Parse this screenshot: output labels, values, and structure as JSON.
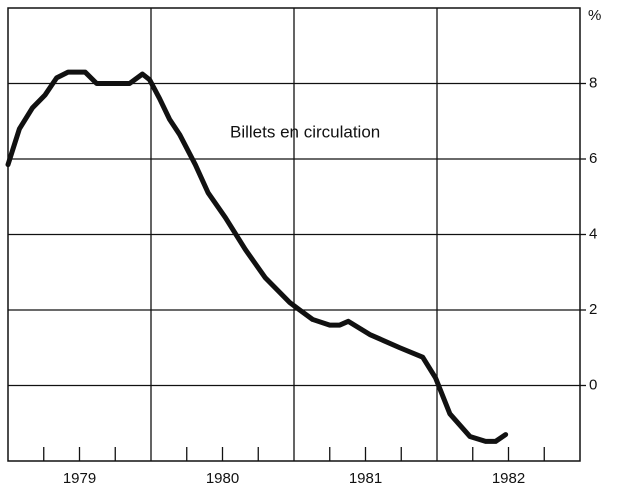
{
  "chart_data": {
    "type": "line",
    "annotation": "Billets en circulation",
    "y_unit": "%",
    "x": [
      1979.0,
      1979.08,
      1979.17,
      1979.26,
      1979.34,
      1979.42,
      1979.54,
      1979.62,
      1979.85,
      1979.94,
      1979.99,
      1980.06,
      1980.13,
      1980.2,
      1980.31,
      1980.4,
      1980.52,
      1980.66,
      1980.8,
      1980.97,
      1981.04,
      1981.13,
      1981.25,
      1981.32,
      1981.38,
      1981.53,
      1981.74,
      1981.9,
      1981.99,
      1982.09,
      1982.23,
      1982.34,
      1982.41,
      1982.48
    ],
    "series": [
      {
        "color": "#111111",
        "values": [
          5.85,
          6.8,
          7.35,
          7.7,
          8.15,
          8.3,
          8.3,
          8.0,
          8.0,
          8.25,
          8.1,
          7.6,
          7.05,
          6.65,
          5.85,
          5.1,
          4.45,
          3.6,
          2.85,
          2.2,
          2.0,
          1.75,
          1.6,
          1.6,
          1.7,
          1.35,
          1.0,
          0.75,
          0.2,
          -0.75,
          -1.35,
          -1.48,
          -1.48,
          -1.3
        ]
      }
    ],
    "xlim": [
      1979,
      1983
    ],
    "xticks": [
      {
        "value": 1979.5,
        "label": "1979"
      },
      {
        "value": 1980.5,
        "label": "1980"
      },
      {
        "value": 1981.5,
        "label": "1981"
      },
      {
        "value": 1982.5,
        "label": "1982"
      }
    ],
    "x_gridlines": [
      1980,
      1981,
      1982
    ],
    "x_minor_ticks": [
      1979.25,
      1979.5,
      1979.75,
      1980.25,
      1980.5,
      1980.75,
      1981.25,
      1981.5,
      1981.75,
      1982.25,
      1982.5,
      1982.75
    ],
    "ylim": [
      -2,
      10
    ],
    "yticks": [
      0,
      2,
      4,
      6,
      8
    ],
    "grid": true
  }
}
